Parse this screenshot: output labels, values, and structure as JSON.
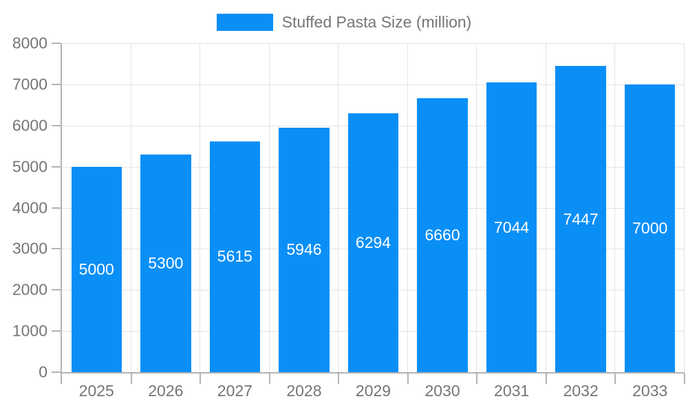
{
  "chart_data": {
    "type": "bar",
    "title": "Stuffed Pasta Size (million)",
    "categories": [
      "2025",
      "2026",
      "2027",
      "2028",
      "2029",
      "2030",
      "2031",
      "2032",
      "2033"
    ],
    "values": [
      5000,
      5300,
      5615,
      5946,
      6294,
      6660,
      7044,
      7447,
      7000
    ],
    "series_name": "Stuffed Pasta Size (million)",
    "xlabel": "",
    "ylabel": "",
    "ylim": [
      0,
      8000
    ],
    "ytick_step": 1000,
    "legend_position": "top",
    "grid": true,
    "value_labels": "inside-center",
    "colors": {
      "bar": "#0a8ff7",
      "axis_text": "#757575",
      "legend_text": "#757575",
      "grid_line": "#e3e3e3",
      "axis_line": "#b3b3b3",
      "value_label": "#ffffff",
      "background": "#ffffff"
    }
  }
}
